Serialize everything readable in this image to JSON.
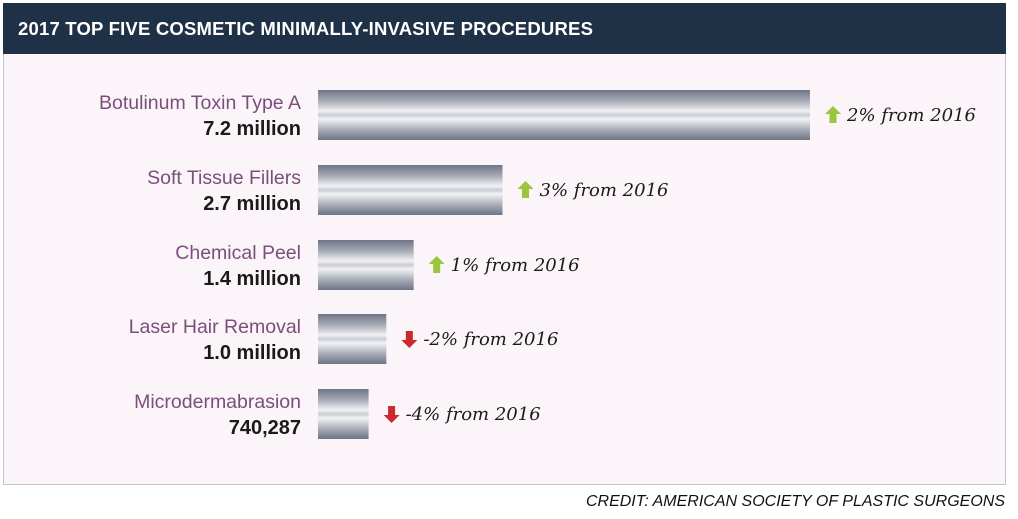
{
  "title": "2017 TOP FIVE COSMETIC MINIMALLY-INVASIVE PROCEDURES",
  "credit": "CREDIT: AMERICAN SOCIETY OF PLASTIC SURGEONS",
  "colors": {
    "header_bg": "#1f3147",
    "panel_bg": "#fbf5f9",
    "category_text": "#7a4f7c",
    "arrow_up": "#9bc53d",
    "arrow_down": "#cc2a2a",
    "bar_light": "#f2f2f4",
    "bar_dark": "#6e7485"
  },
  "chart_data": {
    "type": "bar",
    "orientation": "horizontal",
    "title": "2017 TOP FIVE COSMETIC MINIMALLY-INVASIVE PROCEDURES",
    "grid": false,
    "categories": [
      "Botulinum Toxin Type A",
      "Soft Tissue Fillers",
      "Chemical Peel",
      "Laser Hair Removal",
      "Microdermabrasion"
    ],
    "values": [
      7200000,
      2700000,
      1400000,
      1000000,
      740287
    ],
    "value_labels": [
      "7.2 million",
      "2.7 million",
      "1.4 million",
      "1.0 million",
      "740,287"
    ],
    "changes": [
      {
        "direction": "up",
        "text": "2% from 2016"
      },
      {
        "direction": "up",
        "text": "3% from 2016"
      },
      {
        "direction": "up",
        "text": "1% from 2016"
      },
      {
        "direction": "down",
        "text": "-2% from 2016"
      },
      {
        "direction": "down",
        "text": "-4% from 2016"
      }
    ],
    "xlim": [
      0,
      7200000
    ]
  }
}
